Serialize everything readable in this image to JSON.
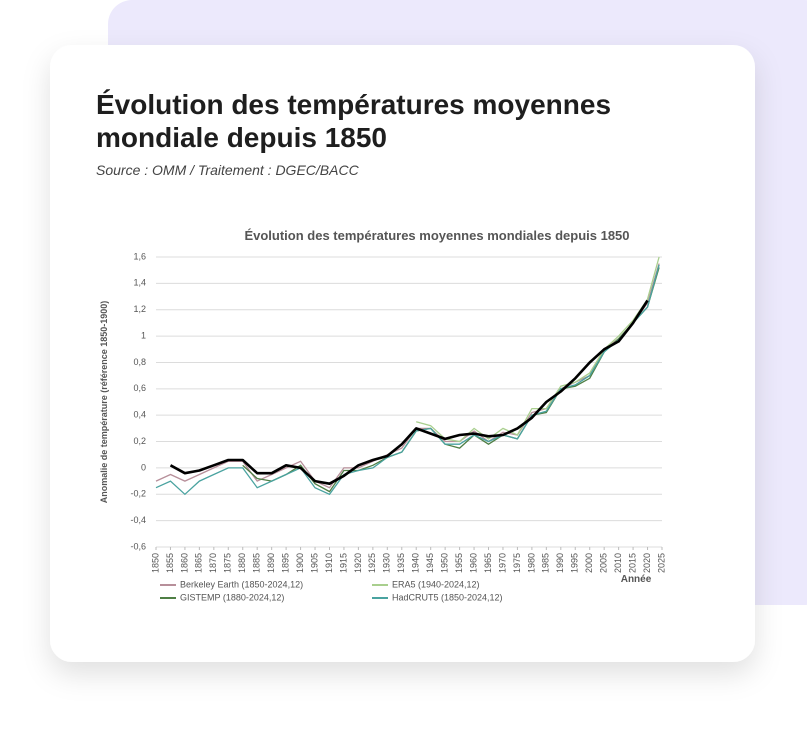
{
  "header": {
    "title": [
      "Évolution des températures moyennes",
      "mondiale depuis 1850"
    ],
    "source": "Source : OMM / Traitement : DGEC/BACC"
  },
  "chart_data": {
    "type": "line",
    "title": "Évolution des températures moyennes mondiales depuis 1850",
    "x_label": "Année",
    "y_label": "Anomalie de température (référence 1850-1900)",
    "x": [
      1850,
      1855,
      1860,
      1865,
      1870,
      1875,
      1880,
      1885,
      1890,
      1895,
      1900,
      1905,
      1910,
      1915,
      1920,
      1925,
      1930,
      1935,
      1940,
      1945,
      1950,
      1955,
      1960,
      1965,
      1970,
      1975,
      1980,
      1985,
      1990,
      1995,
      2000,
      2005,
      2010,
      2015,
      2020,
      2024
    ],
    "series": [
      {
        "name": "Berkeley Earth (1850-2024,12)",
        "color": "#b78f9a",
        "values": [
          -0.1,
          -0.05,
          -0.1,
          -0.05,
          0.0,
          0.05,
          0.05,
          -0.1,
          -0.05,
          0.0,
          0.05,
          -0.1,
          -0.15,
          0.0,
          0.0,
          0.05,
          0.1,
          0.15,
          0.3,
          0.3,
          0.2,
          0.2,
          0.28,
          0.2,
          0.27,
          0.25,
          0.42,
          0.45,
          0.6,
          0.65,
          0.7,
          0.9,
          0.98,
          1.1,
          1.25,
          1.55
        ]
      },
      {
        "name": "ERA5 (1940-2024,12)",
        "color": "#a9cf8e",
        "values": [
          null,
          null,
          null,
          null,
          null,
          null,
          null,
          null,
          null,
          null,
          null,
          null,
          null,
          null,
          null,
          null,
          null,
          null,
          0.35,
          0.32,
          0.22,
          0.2,
          0.3,
          0.22,
          0.3,
          0.25,
          0.45,
          0.45,
          0.62,
          0.65,
          0.72,
          0.9,
          1.0,
          1.12,
          1.28,
          1.6
        ]
      },
      {
        "name": "GISTEMP (1880-2024,12)",
        "color": "#4f7f45",
        "values": [
          null,
          null,
          null,
          null,
          null,
          null,
          0.02,
          -0.08,
          -0.1,
          -0.05,
          0.02,
          -0.12,
          -0.18,
          -0.02,
          -0.02,
          0.02,
          0.08,
          0.12,
          0.28,
          0.3,
          0.18,
          0.15,
          0.25,
          0.18,
          0.25,
          0.22,
          0.4,
          0.42,
          0.6,
          0.62,
          0.68,
          0.88,
          0.98,
          1.1,
          1.22,
          1.52
        ]
      },
      {
        "name": "HadCRUT5 (1850-2024,12)",
        "color": "#4aa3a0",
        "values": [
          -0.15,
          -0.1,
          -0.2,
          -0.1,
          -0.05,
          0.0,
          0.0,
          -0.15,
          -0.1,
          -0.05,
          0.0,
          -0.15,
          -0.2,
          -0.05,
          -0.02,
          0.0,
          0.08,
          0.12,
          0.28,
          0.3,
          0.18,
          0.18,
          0.25,
          0.2,
          0.25,
          0.22,
          0.4,
          0.43,
          0.6,
          0.63,
          0.7,
          0.88,
          0.97,
          1.1,
          1.22,
          1.54
        ]
      }
    ],
    "trend": {
      "color": "#000000",
      "values": [
        null,
        0.02,
        -0.04,
        -0.02,
        0.02,
        0.06,
        0.06,
        -0.04,
        -0.04,
        0.02,
        0.0,
        -0.1,
        -0.12,
        -0.06,
        0.02,
        0.06,
        0.09,
        0.18,
        0.3,
        0.26,
        0.22,
        0.25,
        0.26,
        0.24,
        0.25,
        0.3,
        0.38,
        0.5,
        0.58,
        0.68,
        0.8,
        0.9,
        0.96,
        1.1,
        1.27,
        null
      ]
    },
    "xlim": [
      1850,
      2025
    ],
    "xticks": [
      1850,
      1855,
      1860,
      1865,
      1870,
      1875,
      1880,
      1885,
      1890,
      1895,
      1900,
      1905,
      1910,
      1915,
      1920,
      1925,
      1930,
      1935,
      1940,
      1945,
      1950,
      1955,
      1960,
      1965,
      1970,
      1975,
      1980,
      1985,
      1990,
      1995,
      2000,
      2005,
      2010,
      2015,
      2020,
      2025
    ],
    "ylim": [
      -0.6,
      1.6
    ],
    "yticks": [
      {
        "value": -0.6,
        "label": "-0,6"
      },
      {
        "value": -0.4,
        "label": "-0,4"
      },
      {
        "value": -0.2,
        "label": "-0,2"
      },
      0,
      {
        "value": 0.2,
        "label": "0,2"
      },
      {
        "value": 0.4,
        "label": "0,4"
      },
      {
        "value": 0.6,
        "label": "0,6"
      },
      {
        "value": 0.8,
        "label": "0,8"
      },
      1,
      {
        "value": 1.2,
        "label": "1,2"
      },
      {
        "value": 1.4,
        "label": "1,4"
      },
      {
        "value": 1.6,
        "label": "1,6"
      }
    ],
    "grid": true,
    "legend": "bottom"
  }
}
